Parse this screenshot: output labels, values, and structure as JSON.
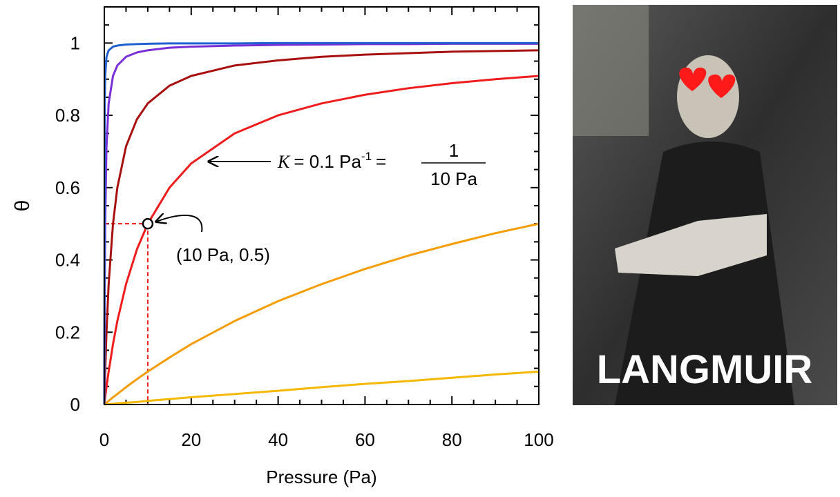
{
  "chart_data": {
    "type": "line",
    "xlabel": "Pressure (Pa)",
    "ylabel": "θ",
    "x": [
      0,
      0.1,
      0.2,
      0.5,
      1,
      2,
      3,
      5,
      7.5,
      10,
      15,
      20,
      30,
      40,
      50,
      60,
      70,
      80,
      90,
      100
    ],
    "series": [
      {
        "color": "#f5b800",
        "values": [
          0,
          0,
          0,
          0.001,
          0.001,
          0.002,
          0.003,
          0.005,
          0.007,
          0.01,
          0.015,
          0.02,
          0.029,
          0.038,
          0.048,
          0.057,
          0.065,
          0.074,
          0.083,
          0.091
        ]
      },
      {
        "color": "#f59d00",
        "values": [
          0,
          0.001,
          0.002,
          0.005,
          0.01,
          0.02,
          0.029,
          0.048,
          0.07,
          0.091,
          0.13,
          0.167,
          0.231,
          0.286,
          0.333,
          0.375,
          0.412,
          0.444,
          0.474,
          0.5
        ]
      },
      {
        "color": "#ee1c1c",
        "values": [
          0,
          0.01,
          0.02,
          0.048,
          0.091,
          0.167,
          0.231,
          0.333,
          0.429,
          0.5,
          0.6,
          0.667,
          0.75,
          0.8,
          0.833,
          0.857,
          0.875,
          0.889,
          0.9,
          0.909
        ]
      },
      {
        "color": "#a80f0f",
        "values": [
          0,
          0.048,
          0.091,
          0.2,
          0.333,
          0.5,
          0.6,
          0.714,
          0.789,
          0.833,
          0.882,
          0.909,
          0.938,
          0.952,
          0.962,
          0.968,
          0.972,
          0.976,
          0.978,
          0.98
        ]
      },
      {
        "color": "#7a2ed8",
        "values": [
          0,
          0.333,
          0.5,
          0.714,
          0.833,
          0.909,
          0.938,
          0.962,
          0.974,
          0.98,
          0.987,
          0.99,
          0.993,
          0.995,
          0.996,
          0.997,
          0.997,
          0.998,
          0.998,
          0.998
        ]
      },
      {
        "color": "#1f5fd0",
        "values": [
          0,
          0.833,
          0.909,
          0.962,
          0.98,
          0.99,
          0.993,
          0.996,
          0.997,
          0.998,
          0.999,
          0.999,
          0.999,
          1,
          1,
          1,
          1,
          1,
          1,
          1
        ]
      }
    ],
    "xlim": [
      0,
      100
    ],
    "xticks": [
      0,
      20,
      40,
      60,
      80,
      100
    ],
    "xminorticks": [
      5,
      10,
      15,
      25,
      30,
      35,
      45,
      50,
      55,
      65,
      70,
      75,
      85,
      90,
      95
    ],
    "ylim": [
      0,
      1.1
    ],
    "yticks": [
      0,
      0.2,
      0.4,
      0.6,
      0.8,
      1
    ],
    "yminorticks": [
      0.05,
      0.1,
      0.15,
      0.25,
      0.3,
      0.35,
      0.45,
      0.5,
      0.55,
      0.65,
      0.7,
      0.75,
      0.85,
      0.9,
      0.95,
      1.05
    ],
    "point": {
      "x": 10,
      "y": 0.5,
      "color": "#ee1c1c",
      "label": "(10 Pa, 0.5)"
    },
    "annotation": {
      "symbol": "K",
      "text": "= 0.1 Pa",
      "exponent": "-1",
      "equals": "=",
      "numerator": "1",
      "denominator": "10 Pa"
    }
  },
  "photo": {
    "caption": "LANGMUIR"
  }
}
